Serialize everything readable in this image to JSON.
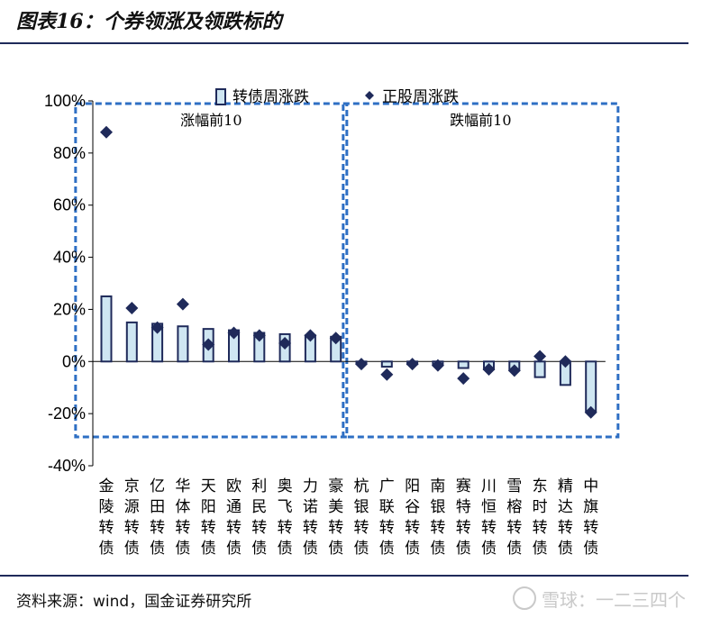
{
  "figure": {
    "title": "图表16：个券领涨及领跌标的",
    "source": "资料来源：wind，国金证券研究所",
    "watermark": "雪球：一二三四个"
  },
  "colors": {
    "bar_fill": "#cfe6f2",
    "bar_stroke": "#1f2a5a",
    "marker": "#1f2a5a",
    "box_dash": "#2e6fc4",
    "rule": "#1f2a5a"
  },
  "chart_data": {
    "type": "bar",
    "categories": [
      "金陵转债",
      "京源转债",
      "亿田转债",
      "华体转债",
      "天阳转债",
      "欧通转债",
      "利民转债",
      "奥飞转债",
      "力诺转债",
      "豪美转债",
      "杭银转债",
      "广联转债",
      "阳谷转债",
      "南银转债",
      "赛特转债",
      "川恒转债",
      "雪榕转债",
      "东时转债",
      "精达转债",
      "中旗转债"
    ],
    "series": [
      {
        "name": "转债周涨跌",
        "kind": "bar",
        "values": [
          25,
          15,
          14.5,
          13.5,
          12.5,
          12,
          11,
          10.5,
          10,
          9.5,
          -0.5,
          -2,
          -1,
          -1,
          -2.5,
          -3,
          -3,
          -6,
          -9,
          -19
        ]
      },
      {
        "name": "正股周涨跌",
        "kind": "marker",
        "values": [
          88,
          20.5,
          13,
          22,
          6.5,
          11,
          10,
          7,
          10,
          9,
          -1,
          -5,
          -1,
          -1.5,
          -6.5,
          -3,
          -3.5,
          2,
          0,
          -19.5
        ]
      }
    ],
    "ylim": [
      -40,
      100
    ],
    "yticks": [
      "100%",
      "80%",
      "60%",
      "40%",
      "20%",
      "0%",
      "-20%",
      "-40%"
    ],
    "legend_position": "top",
    "annotations": [
      {
        "label": "涨幅前10",
        "from_index": 0,
        "to_index": 9
      },
      {
        "label": "跌幅前10",
        "from_index": 10,
        "to_index": 19
      }
    ],
    "grid": false
  }
}
